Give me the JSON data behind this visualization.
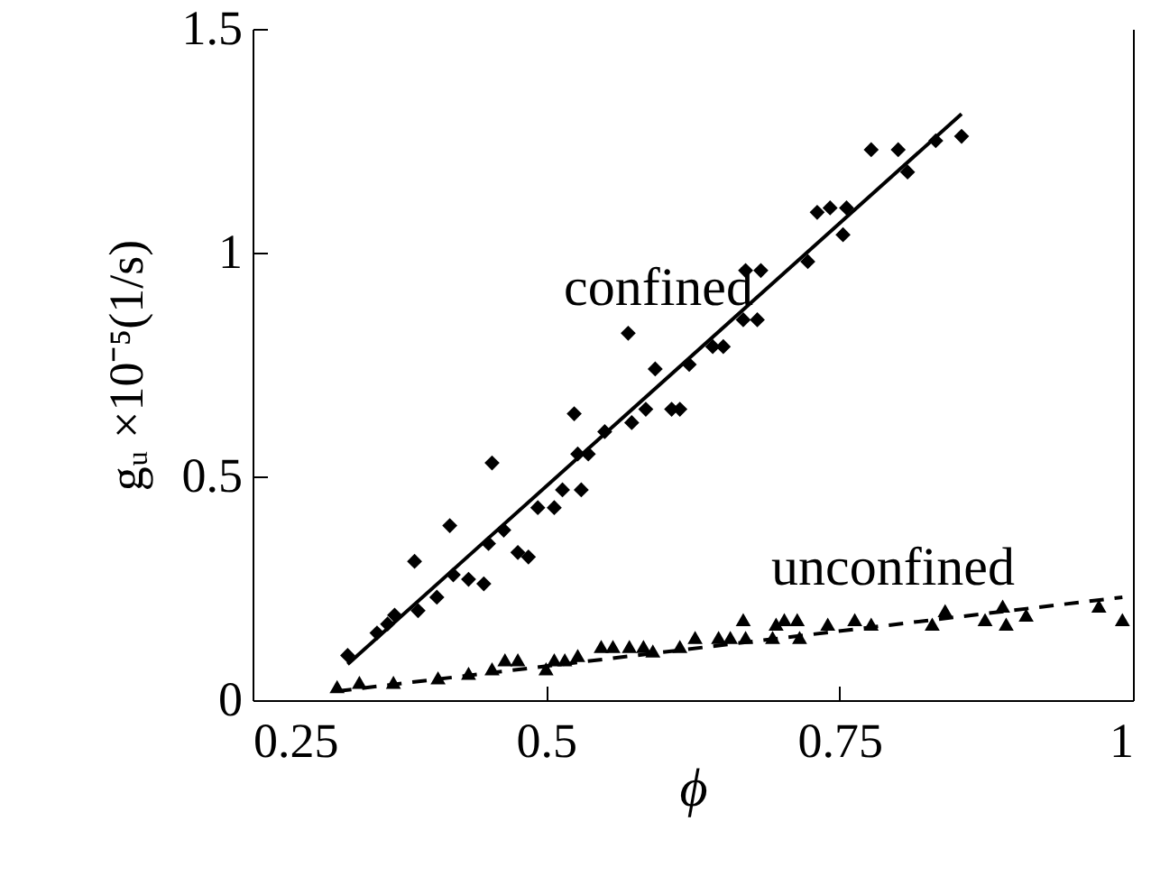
{
  "chart_data": {
    "type": "scatter",
    "xlabel": "ϕ",
    "ylabel": "gᵤ ×10⁻⁵(1/s)",
    "xlim": [
      0.25,
      1
    ],
    "ylim": [
      0,
      1.5
    ],
    "xticks": [
      0.25,
      0.5,
      0.75,
      1
    ],
    "yticks": [
      0,
      0.5,
      1,
      1.5
    ],
    "grid": false,
    "annotations": [
      "confined",
      "unconfined"
    ],
    "series": [
      {
        "marker": "diamond",
        "color": "#000000",
        "x": [
          0.331,
          0.356,
          0.365,
          0.371,
          0.388,
          0.391,
          0.407,
          0.418,
          0.421,
          0.434,
          0.447,
          0.451,
          0.454,
          0.464,
          0.476,
          0.485,
          0.493,
          0.507,
          0.514,
          0.53,
          0.524,
          0.527,
          0.536,
          0.55,
          0.57,
          0.573,
          0.585,
          0.593,
          0.607,
          0.614,
          0.622,
          0.642,
          0.651,
          0.668,
          0.68,
          0.67,
          0.683,
          0.723,
          0.731,
          0.742,
          0.756,
          0.753,
          0.777,
          0.8,
          0.808,
          0.832,
          0.854
        ],
        "values": [
          0.1,
          0.15,
          0.17,
          0.19,
          0.31,
          0.2,
          0.23,
          0.39,
          0.28,
          0.27,
          0.26,
          0.35,
          0.53,
          0.38,
          0.33,
          0.32,
          0.43,
          0.43,
          0.47,
          0.47,
          0.64,
          0.55,
          0.55,
          0.6,
          0.82,
          0.62,
          0.65,
          0.74,
          0.65,
          0.65,
          0.75,
          0.79,
          0.79,
          0.85,
          0.85,
          0.96,
          0.96,
          0.98,
          1.09,
          1.1,
          1.1,
          1.04,
          1.23,
          1.23,
          1.18,
          1.25,
          1.26
        ]
      },
      {
        "marker": "triangle",
        "color": "#000000",
        "x": [
          0.322,
          0.341,
          0.37,
          0.408,
          0.434,
          0.454,
          0.465,
          0.476,
          0.5,
          0.507,
          0.516,
          0.527,
          0.547,
          0.557,
          0.571,
          0.583,
          0.591,
          0.614,
          0.627,
          0.647,
          0.657,
          0.668,
          0.67,
          0.693,
          0.696,
          0.703,
          0.714,
          0.716,
          0.74,
          0.763,
          0.777,
          0.829,
          0.84,
          0.874,
          0.889,
          0.892,
          0.909,
          0.971,
          0.991
        ],
        "values": [
          0.03,
          0.04,
          0.04,
          0.05,
          0.06,
          0.07,
          0.09,
          0.09,
          0.07,
          0.09,
          0.09,
          0.1,
          0.12,
          0.12,
          0.12,
          0.12,
          0.11,
          0.12,
          0.14,
          0.14,
          0.14,
          0.18,
          0.14,
          0.14,
          0.17,
          0.18,
          0.18,
          0.14,
          0.17,
          0.18,
          0.17,
          0.17,
          0.2,
          0.18,
          0.21,
          0.17,
          0.19,
          0.21,
          0.18
        ]
      },
      {
        "type": "line",
        "line_style": "solid",
        "color": "#000000",
        "x": [
          0.331,
          0.854
        ],
        "values": [
          0.08,
          1.31
        ]
      },
      {
        "type": "line",
        "line_style": "dashed",
        "color": "#000000",
        "x": [
          0.322,
          0.991
        ],
        "values": [
          0.02,
          0.23
        ]
      }
    ]
  }
}
